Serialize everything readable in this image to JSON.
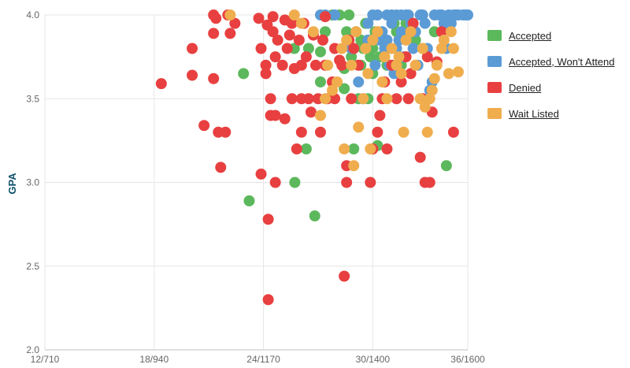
{
  "chart_data": {
    "type": "scatter",
    "ylabel": "GPA",
    "xlabel": "",
    "xlim": [
      710,
      1600
    ],
    "ylim": [
      2.0,
      4.0
    ],
    "x_ticks": [
      {
        "value": 710,
        "label": "12/710"
      },
      {
        "value": 940,
        "label": "18/940"
      },
      {
        "value": 1170,
        "label": "24/1170"
      },
      {
        "value": 1400,
        "label": "30/1400"
      },
      {
        "value": 1600,
        "label": "36/1600"
      }
    ],
    "y_ticks": [
      {
        "value": 2.0,
        "label": "2.0"
      },
      {
        "value": 2.5,
        "label": "2.5"
      },
      {
        "value": 3.0,
        "label": "3.0"
      },
      {
        "value": 3.5,
        "label": "3.5"
      },
      {
        "value": 4.0,
        "label": "4.0"
      }
    ],
    "grid": true,
    "legend_position": "right",
    "series": [
      {
        "name": "Accepted",
        "color": "#5cb85c",
        "points": [
          [
            1128,
            3.65
          ],
          [
            1140,
            2.89
          ],
          [
            1235,
            3.8
          ],
          [
            1236,
            3.0
          ],
          [
            1260,
            3.2
          ],
          [
            1265,
            3.8
          ],
          [
            1278,
            2.8
          ],
          [
            1290,
            3.6
          ],
          [
            1290,
            3.78
          ],
          [
            1300,
            3.9
          ],
          [
            1315,
            4.0
          ],
          [
            1330,
            4.0
          ],
          [
            1340,
            3.56
          ],
          [
            1340,
            3.68
          ],
          [
            1345,
            3.9
          ],
          [
            1350,
            4.0
          ],
          [
            1360,
            3.2
          ],
          [
            1360,
            3.8
          ],
          [
            1365,
            3.9
          ],
          [
            1370,
            3.5
          ],
          [
            1375,
            3.7
          ],
          [
            1385,
            3.95
          ],
          [
            1390,
            3.5
          ],
          [
            1395,
            3.75
          ],
          [
            1395,
            3.85
          ],
          [
            1405,
            3.9
          ],
          [
            1410,
            3.22
          ],
          [
            1415,
            3.75
          ],
          [
            1420,
            3.85
          ],
          [
            1430,
            3.7
          ],
          [
            1440,
            3.8
          ],
          [
            1445,
            3.95
          ],
          [
            1450,
            3.9
          ],
          [
            1460,
            3.7
          ],
          [
            1470,
            3.95
          ],
          [
            1490,
            3.85
          ],
          [
            1505,
            3.8
          ],
          [
            1530,
            3.9
          ],
          [
            1555,
            3.1
          ],
          [
            1560,
            3.95
          ],
          [
            1355,
            3.75
          ],
          [
            1375,
            3.85
          ],
          [
            1400,
            3.65
          ],
          [
            1425,
            3.75
          ],
          [
            1400,
            3.8
          ],
          [
            1380,
            3.8
          ]
        ]
      },
      {
        "name": "Accepted, Won't Attend",
        "color": "#5b9bd5",
        "points": [
          [
            1290,
            4.0
          ],
          [
            1300,
            4.0
          ],
          [
            1320,
            4.0
          ],
          [
            1355,
            3.8
          ],
          [
            1370,
            3.6
          ],
          [
            1380,
            3.5
          ],
          [
            1390,
            3.95
          ],
          [
            1400,
            4.0
          ],
          [
            1405,
            3.7
          ],
          [
            1410,
            4.0
          ],
          [
            1420,
            3.9
          ],
          [
            1425,
            3.8
          ],
          [
            1430,
            4.0
          ],
          [
            1435,
            3.7
          ],
          [
            1440,
            3.95
          ],
          [
            1445,
            3.65
          ],
          [
            1450,
            4.0
          ],
          [
            1455,
            3.85
          ],
          [
            1460,
            3.9
          ],
          [
            1465,
            3.75
          ],
          [
            1470,
            4.0
          ],
          [
            1480,
            3.95
          ],
          [
            1485,
            3.8
          ],
          [
            1490,
            3.9
          ],
          [
            1495,
            3.7
          ],
          [
            1500,
            4.0
          ],
          [
            1510,
            3.95
          ],
          [
            1515,
            3.8
          ],
          [
            1520,
            3.55
          ],
          [
            1525,
            3.6
          ],
          [
            1530,
            4.0
          ],
          [
            1540,
            4.0
          ],
          [
            1550,
            3.95
          ],
          [
            1555,
            3.8
          ],
          [
            1560,
            4.0
          ],
          [
            1565,
            3.95
          ],
          [
            1570,
            4.0
          ],
          [
            1580,
            4.0
          ],
          [
            1590,
            4.0
          ],
          [
            1600,
            4.0
          ],
          [
            1595,
            4.0
          ],
          [
            1575,
            4.0
          ],
          [
            1545,
            4.0
          ],
          [
            1505,
            4.0
          ],
          [
            1475,
            4.0
          ],
          [
            1460,
            4.0
          ],
          [
            1440,
            4.0
          ],
          [
            1415,
            3.85
          ],
          [
            1390,
            3.85
          ],
          [
            1430,
            3.85
          ],
          [
            1450,
            3.8
          ]
        ]
      },
      {
        "name": "Denied",
        "color": "#e84040",
        "points": [
          [
            955,
            3.59
          ],
          [
            1020,
            3.8
          ],
          [
            1020,
            3.64
          ],
          [
            1045,
            3.34
          ],
          [
            1065,
            4.0
          ],
          [
            1065,
            3.89
          ],
          [
            1065,
            3.62
          ],
          [
            1070,
            3.98
          ],
          [
            1075,
            3.3
          ],
          [
            1080,
            3.09
          ],
          [
            1090,
            3.3
          ],
          [
            1095,
            4.0
          ],
          [
            1100,
            3.89
          ],
          [
            1110,
            3.95
          ],
          [
            1160,
            3.98
          ],
          [
            1165,
            3.8
          ],
          [
            1165,
            3.05
          ],
          [
            1175,
            3.7
          ],
          [
            1175,
            3.65
          ],
          [
            1178,
            3.94
          ],
          [
            1180,
            2.78
          ],
          [
            1180,
            2.3
          ],
          [
            1185,
            3.5
          ],
          [
            1185,
            3.4
          ],
          [
            1190,
            3.99
          ],
          [
            1190,
            3.9
          ],
          [
            1195,
            3.75
          ],
          [
            1195,
            3.4
          ],
          [
            1195,
            3.0
          ],
          [
            1200,
            3.85
          ],
          [
            1210,
            3.7
          ],
          [
            1215,
            3.97
          ],
          [
            1215,
            3.38
          ],
          [
            1220,
            3.8
          ],
          [
            1225,
            3.88
          ],
          [
            1230,
            3.5
          ],
          [
            1235,
            3.68
          ],
          [
            1240,
            3.2
          ],
          [
            1245,
            3.85
          ],
          [
            1250,
            3.7
          ],
          [
            1250,
            3.5
          ],
          [
            1255,
            3.95
          ],
          [
            1260,
            3.75
          ],
          [
            1265,
            3.5
          ],
          [
            1270,
            3.42
          ],
          [
            1275,
            3.88
          ],
          [
            1280,
            3.7
          ],
          [
            1285,
            3.5
          ],
          [
            1290,
            3.3
          ],
          [
            1295,
            3.85
          ],
          [
            1300,
            3.99
          ],
          [
            1305,
            3.5
          ],
          [
            1315,
            3.6
          ],
          [
            1320,
            3.5
          ],
          [
            1330,
            3.73
          ],
          [
            1335,
            3.7
          ],
          [
            1340,
            2.44
          ],
          [
            1345,
            3.0
          ],
          [
            1345,
            3.1
          ],
          [
            1350,
            3.85
          ],
          [
            1355,
            3.5
          ],
          [
            1360,
            3.8
          ],
          [
            1370,
            3.7
          ],
          [
            1395,
            3.0
          ],
          [
            1400,
            3.2
          ],
          [
            1410,
            3.3
          ],
          [
            1415,
            3.4
          ],
          [
            1420,
            3.5
          ],
          [
            1425,
            3.6
          ],
          [
            1430,
            3.2
          ],
          [
            1440,
            3.7
          ],
          [
            1450,
            3.5
          ],
          [
            1460,
            3.6
          ],
          [
            1470,
            3.75
          ],
          [
            1475,
            3.5
          ],
          [
            1480,
            3.65
          ],
          [
            1485,
            3.95
          ],
          [
            1500,
            3.15
          ],
          [
            1505,
            3.5
          ],
          [
            1510,
            3.0
          ],
          [
            1515,
            3.75
          ],
          [
            1520,
            3.0
          ],
          [
            1525,
            3.42
          ],
          [
            1535,
            3.72
          ],
          [
            1545,
            3.9
          ],
          [
            1570,
            3.3
          ],
          [
            1300,
            3.7
          ],
          [
            1320,
            3.8
          ],
          [
            1250,
            3.3
          ],
          [
            1230,
            3.95
          ]
        ]
      },
      {
        "name": "Wait Listed",
        "color": "#f0ad4e",
        "points": [
          [
            1100,
            4.0
          ],
          [
            1235,
            4.0
          ],
          [
            1250,
            3.95
          ],
          [
            1275,
            3.9
          ],
          [
            1290,
            3.4
          ],
          [
            1300,
            3.5
          ],
          [
            1305,
            3.7
          ],
          [
            1315,
            3.55
          ],
          [
            1325,
            3.6
          ],
          [
            1335,
            3.8
          ],
          [
            1340,
            3.2
          ],
          [
            1345,
            3.85
          ],
          [
            1355,
            3.7
          ],
          [
            1360,
            3.1
          ],
          [
            1365,
            3.9
          ],
          [
            1370,
            3.33
          ],
          [
            1380,
            3.5
          ],
          [
            1385,
            3.8
          ],
          [
            1390,
            3.65
          ],
          [
            1395,
            3.2
          ],
          [
            1400,
            3.85
          ],
          [
            1410,
            3.9
          ],
          [
            1420,
            3.6
          ],
          [
            1425,
            3.75
          ],
          [
            1430,
            3.5
          ],
          [
            1440,
            3.8
          ],
          [
            1450,
            3.7
          ],
          [
            1460,
            3.65
          ],
          [
            1465,
            3.3
          ],
          [
            1470,
            3.85
          ],
          [
            1480,
            3.9
          ],
          [
            1490,
            3.7
          ],
          [
            1500,
            3.5
          ],
          [
            1505,
            3.8
          ],
          [
            1510,
            3.45
          ],
          [
            1515,
            3.3
          ],
          [
            1520,
            3.5
          ],
          [
            1525,
            3.55
          ],
          [
            1530,
            3.62
          ],
          [
            1535,
            3.7
          ],
          [
            1545,
            3.8
          ],
          [
            1550,
            3.85
          ],
          [
            1560,
            3.65
          ],
          [
            1570,
            3.8
          ],
          [
            1580,
            3.66
          ],
          [
            1565,
            3.9
          ],
          [
            1410,
            3.9
          ],
          [
            1455,
            3.75
          ]
        ]
      }
    ]
  }
}
